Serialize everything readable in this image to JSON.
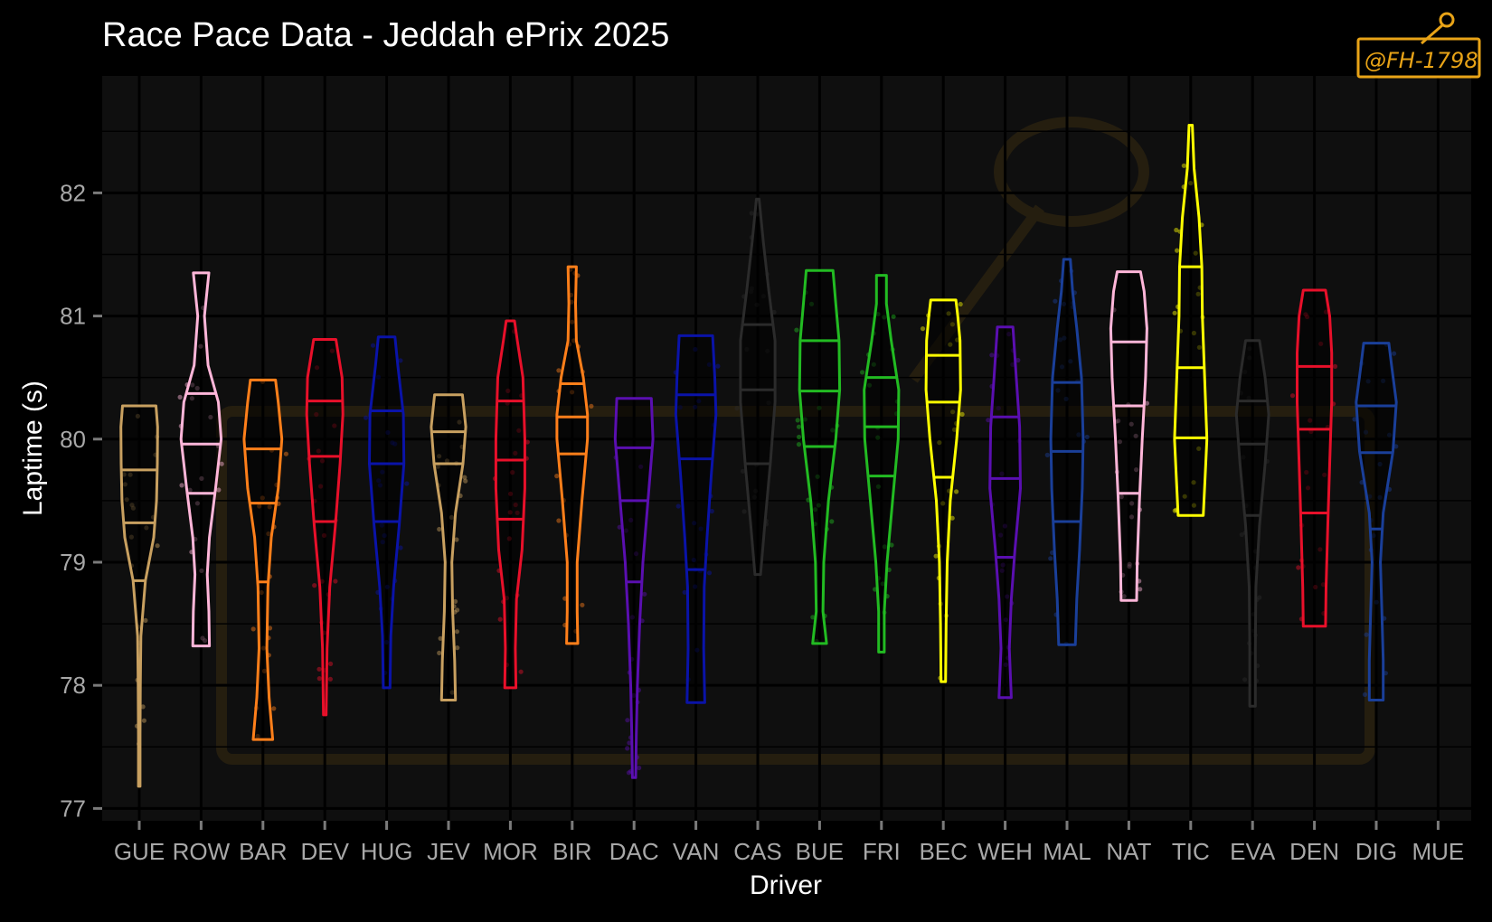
{
  "chart_data": {
    "type": "violin",
    "title": "Race Pace Data - Jeddah ePrix 2025",
    "xlabel": "Driver",
    "ylabel": "Laptime (s)",
    "ylim": [
      76.9,
      82.95
    ],
    "yticks": [
      77,
      78,
      79,
      80,
      81,
      82
    ],
    "grid": true,
    "legend": "none",
    "watermark": "@FH-1798",
    "colors": {
      "background": "#000000",
      "panel": "#0f0f0f",
      "grid_major": "#000000",
      "tick_text": "#a8a8a8",
      "watermark": "#e8a317"
    },
    "categories": [
      "GUE",
      "ROW",
      "BAR",
      "DEV",
      "HUG",
      "JEV",
      "MOR",
      "BIR",
      "DAC",
      "VAN",
      "CAS",
      "BUE",
      "FRI",
      "BEC",
      "WEH",
      "MAL",
      "NAT",
      "TIC",
      "EVA",
      "DEN",
      "DIG",
      "MUE"
    ],
    "series": [
      {
        "driver": "GUE",
        "color": "#c8a060",
        "min": 77.18,
        "max": 80.27,
        "quantiles": [
          78.85,
          79.32,
          79.75
        ],
        "shape": [
          [
            77.18,
            0.03
          ],
          [
            77.6,
            0.03
          ],
          [
            78.0,
            0.04
          ],
          [
            78.4,
            0.06
          ],
          [
            78.85,
            0.22
          ],
          [
            79.2,
            0.52
          ],
          [
            79.5,
            0.62
          ],
          [
            79.8,
            0.65
          ],
          [
            80.1,
            0.66
          ],
          [
            80.27,
            0.6
          ]
        ]
      },
      {
        "driver": "ROW",
        "color": "#ffb6d9",
        "min": 78.32,
        "max": 81.35,
        "quantiles": [
          79.56,
          79.96,
          80.37
        ],
        "shape": [
          [
            78.32,
            0.3
          ],
          [
            78.6,
            0.28
          ],
          [
            78.9,
            0.22
          ],
          [
            79.2,
            0.3
          ],
          [
            79.6,
            0.52
          ],
          [
            80.0,
            0.72
          ],
          [
            80.3,
            0.62
          ],
          [
            80.6,
            0.25
          ],
          [
            81.0,
            0.12
          ],
          [
            81.35,
            0.28
          ]
        ]
      },
      {
        "driver": "BAR",
        "color": "#ff7f1a",
        "min": 77.56,
        "max": 80.48,
        "quantiles": [
          78.84,
          79.48,
          79.92
        ],
        "shape": [
          [
            77.56,
            0.35
          ],
          [
            77.9,
            0.22
          ],
          [
            78.3,
            0.14
          ],
          [
            78.8,
            0.18
          ],
          [
            79.2,
            0.3
          ],
          [
            79.6,
            0.55
          ],
          [
            80.0,
            0.68
          ],
          [
            80.3,
            0.55
          ],
          [
            80.48,
            0.45
          ]
        ]
      },
      {
        "driver": "DEV",
        "color": "#e8102a",
        "min": 77.76,
        "max": 80.81,
        "quantiles": [
          79.33,
          79.86,
          80.31
        ],
        "shape": [
          [
            77.76,
            0.05
          ],
          [
            78.3,
            0.08
          ],
          [
            78.8,
            0.18
          ],
          [
            79.3,
            0.38
          ],
          [
            79.8,
            0.55
          ],
          [
            80.2,
            0.65
          ],
          [
            80.5,
            0.62
          ],
          [
            80.81,
            0.4
          ]
        ]
      },
      {
        "driver": "HUG",
        "color": "#0a13a8",
        "min": 77.98,
        "max": 80.83,
        "quantiles": [
          79.33,
          79.8,
          80.23
        ],
        "shape": [
          [
            77.98,
            0.12
          ],
          [
            78.4,
            0.15
          ],
          [
            78.8,
            0.25
          ],
          [
            79.3,
            0.45
          ],
          [
            79.8,
            0.62
          ],
          [
            80.2,
            0.6
          ],
          [
            80.6,
            0.4
          ],
          [
            80.83,
            0.3
          ]
        ]
      },
      {
        "driver": "JEV",
        "color": "#c8a060",
        "min": 77.88,
        "max": 80.36,
        "quantiles": [
          79.8,
          80.06
        ],
        "shape": [
          [
            77.88,
            0.25
          ],
          [
            78.2,
            0.22
          ],
          [
            78.6,
            0.15
          ],
          [
            79.0,
            0.12
          ],
          [
            79.4,
            0.25
          ],
          [
            79.8,
            0.52
          ],
          [
            80.1,
            0.62
          ],
          [
            80.36,
            0.5
          ]
        ]
      },
      {
        "driver": "MOR",
        "color": "#e8102a",
        "min": 77.98,
        "max": 80.96,
        "quantiles": [
          79.35,
          79.83,
          80.31
        ],
        "shape": [
          [
            77.98,
            0.2
          ],
          [
            78.3,
            0.18
          ],
          [
            78.7,
            0.22
          ],
          [
            79.1,
            0.42
          ],
          [
            79.6,
            0.52
          ],
          [
            80.0,
            0.52
          ],
          [
            80.5,
            0.45
          ],
          [
            80.8,
            0.25
          ],
          [
            80.96,
            0.15
          ]
        ]
      },
      {
        "driver": "BIR",
        "color": "#ff7f1a",
        "min": 78.34,
        "max": 81.4,
        "quantiles": [
          79.88,
          80.18,
          80.45
        ],
        "shape": [
          [
            78.34,
            0.2
          ],
          [
            78.6,
            0.18
          ],
          [
            79.0,
            0.18
          ],
          [
            79.5,
            0.35
          ],
          [
            80.0,
            0.55
          ],
          [
            80.2,
            0.55
          ],
          [
            80.5,
            0.4
          ],
          [
            80.8,
            0.15
          ],
          [
            81.1,
            0.12
          ],
          [
            81.4,
            0.15
          ]
        ]
      },
      {
        "driver": "DAC",
        "color": "#5a0fb0",
        "min": 77.25,
        "max": 80.33,
        "quantiles": [
          78.84,
          79.5,
          79.93
        ],
        "shape": [
          [
            77.25,
            0.06
          ],
          [
            77.6,
            0.08
          ],
          [
            78.0,
            0.12
          ],
          [
            78.5,
            0.2
          ],
          [
            79.0,
            0.32
          ],
          [
            79.5,
            0.5
          ],
          [
            80.0,
            0.68
          ],
          [
            80.33,
            0.62
          ]
        ]
      },
      {
        "driver": "VAN",
        "color": "#0a13a8",
        "min": 77.86,
        "max": 80.84,
        "quantiles": [
          78.94,
          79.84,
          80.36
        ],
        "shape": [
          [
            77.86,
            0.32
          ],
          [
            78.3,
            0.28
          ],
          [
            78.8,
            0.3
          ],
          [
            79.2,
            0.4
          ],
          [
            79.7,
            0.55
          ],
          [
            80.2,
            0.72
          ],
          [
            80.5,
            0.68
          ],
          [
            80.84,
            0.6
          ]
        ]
      },
      {
        "driver": "CAS",
        "color": "#2b2b2b",
        "min": 78.9,
        "max": 81.95,
        "quantiles": [
          79.8,
          80.4,
          80.93
        ],
        "shape": [
          [
            78.9,
            0.1
          ],
          [
            79.3,
            0.25
          ],
          [
            79.8,
            0.45
          ],
          [
            80.3,
            0.62
          ],
          [
            80.8,
            0.62
          ],
          [
            81.2,
            0.4
          ],
          [
            81.6,
            0.2
          ],
          [
            81.95,
            0.05
          ]
        ]
      },
      {
        "driver": "BUE",
        "color": "#22bb22",
        "min": 78.34,
        "max": 81.37,
        "quantiles": [
          79.94,
          80.39,
          80.8
        ],
        "shape": [
          [
            78.34,
            0.25
          ],
          [
            78.6,
            0.12
          ],
          [
            79.0,
            0.15
          ],
          [
            79.5,
            0.32
          ],
          [
            80.0,
            0.58
          ],
          [
            80.4,
            0.72
          ],
          [
            80.8,
            0.7
          ],
          [
            81.1,
            0.58
          ],
          [
            81.37,
            0.48
          ]
        ]
      },
      {
        "driver": "FRI",
        "color": "#22bb22",
        "min": 78.27,
        "max": 81.33,
        "quantiles": [
          79.7,
          80.1,
          80.5
        ],
        "shape": [
          [
            78.27,
            0.1
          ],
          [
            78.6,
            0.1
          ],
          [
            79.0,
            0.2
          ],
          [
            79.5,
            0.4
          ],
          [
            80.0,
            0.6
          ],
          [
            80.4,
            0.62
          ],
          [
            80.8,
            0.35
          ],
          [
            81.1,
            0.18
          ],
          [
            81.33,
            0.18
          ]
        ]
      },
      {
        "driver": "BEC",
        "color": "#ffff00",
        "min": 78.03,
        "max": 81.13,
        "quantiles": [
          79.69,
          80.3,
          80.68
        ],
        "shape": [
          [
            78.03,
            0.08
          ],
          [
            78.5,
            0.1
          ],
          [
            79.0,
            0.14
          ],
          [
            79.5,
            0.25
          ],
          [
            80.0,
            0.48
          ],
          [
            80.4,
            0.62
          ],
          [
            80.8,
            0.6
          ],
          [
            81.0,
            0.52
          ],
          [
            81.13,
            0.45
          ]
        ]
      },
      {
        "driver": "WEH",
        "color": "#5a0fb0",
        "min": 77.9,
        "max": 80.91,
        "quantiles": [
          79.04,
          79.68,
          80.18
        ],
        "shape": [
          [
            77.9,
            0.22
          ],
          [
            78.3,
            0.15
          ],
          [
            78.7,
            0.22
          ],
          [
            79.1,
            0.35
          ],
          [
            79.6,
            0.55
          ],
          [
            80.1,
            0.52
          ],
          [
            80.5,
            0.4
          ],
          [
            80.91,
            0.28
          ]
        ]
      },
      {
        "driver": "MAL",
        "color": "#1a3f99",
        "min": 78.33,
        "max": 81.46,
        "quantiles": [
          79.33,
          79.9,
          80.46
        ],
        "shape": [
          [
            78.33,
            0.3
          ],
          [
            78.7,
            0.35
          ],
          [
            79.1,
            0.45
          ],
          [
            79.6,
            0.55
          ],
          [
            80.0,
            0.58
          ],
          [
            80.5,
            0.52
          ],
          [
            80.9,
            0.35
          ],
          [
            81.2,
            0.2
          ],
          [
            81.46,
            0.12
          ]
        ]
      },
      {
        "driver": "NAT",
        "color": "#ffb6d9",
        "min": 78.69,
        "max": 81.36,
        "quantiles": [
          79.56,
          80.27,
          80.79
        ],
        "shape": [
          [
            78.69,
            0.28
          ],
          [
            79.0,
            0.3
          ],
          [
            79.5,
            0.38
          ],
          [
            80.0,
            0.48
          ],
          [
            80.5,
            0.6
          ],
          [
            80.9,
            0.65
          ],
          [
            81.2,
            0.55
          ],
          [
            81.36,
            0.42
          ]
        ]
      },
      {
        "driver": "TIC",
        "color": "#ffff00",
        "min": 79.38,
        "max": 82.55,
        "quantiles": [
          80.01,
          80.58,
          81.4
        ],
        "shape": [
          [
            79.38,
            0.45
          ],
          [
            79.7,
            0.52
          ],
          [
            80.0,
            0.58
          ],
          [
            80.5,
            0.5
          ],
          [
            81.0,
            0.42
          ],
          [
            81.4,
            0.4
          ],
          [
            81.8,
            0.3
          ],
          [
            82.2,
            0.12
          ],
          [
            82.55,
            0.06
          ]
        ]
      },
      {
        "driver": "EVA",
        "color": "#2b2b2b",
        "min": 77.83,
        "max": 80.8,
        "quantiles": [
          79.38,
          79.96,
          80.31
        ],
        "shape": [
          [
            77.83,
            0.1
          ],
          [
            78.3,
            0.1
          ],
          [
            78.8,
            0.12
          ],
          [
            79.3,
            0.25
          ],
          [
            79.8,
            0.45
          ],
          [
            80.2,
            0.58
          ],
          [
            80.5,
            0.45
          ],
          [
            80.8,
            0.25
          ]
        ]
      },
      {
        "driver": "DEN",
        "color": "#e8102a",
        "min": 78.48,
        "max": 81.21,
        "quantiles": [
          79.4,
          80.08,
          80.59
        ],
        "shape": [
          [
            78.48,
            0.4
          ],
          [
            78.8,
            0.42
          ],
          [
            79.3,
            0.48
          ],
          [
            79.8,
            0.55
          ],
          [
            80.3,
            0.62
          ],
          [
            80.7,
            0.62
          ],
          [
            81.0,
            0.55
          ],
          [
            81.21,
            0.4
          ]
        ]
      },
      {
        "driver": "DIG",
        "color": "#1a3f99",
        "min": 77.88,
        "max": 80.78,
        "quantiles": [
          79.27,
          79.89,
          80.27
        ],
        "shape": [
          [
            77.88,
            0.25
          ],
          [
            78.2,
            0.25
          ],
          [
            78.6,
            0.2
          ],
          [
            79.0,
            0.15
          ],
          [
            79.4,
            0.25
          ],
          [
            79.9,
            0.6
          ],
          [
            80.3,
            0.72
          ],
          [
            80.6,
            0.55
          ],
          [
            80.78,
            0.45
          ]
        ]
      },
      {
        "driver": "MUE",
        "color": "#000000",
        "min": null,
        "max": null,
        "quantiles": [],
        "shape": []
      }
    ]
  }
}
